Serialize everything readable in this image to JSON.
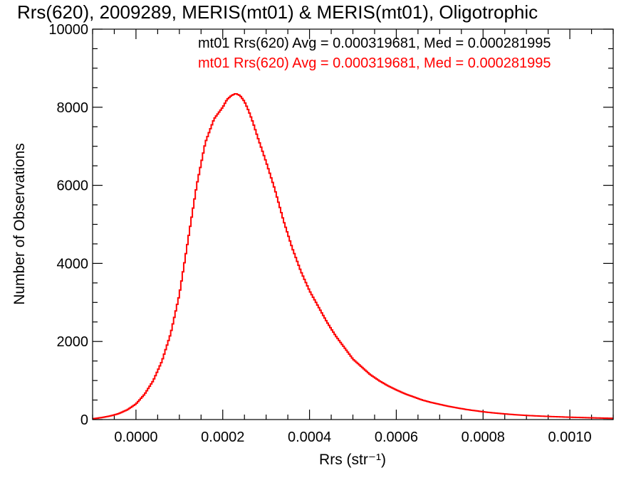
{
  "chart_data": {
    "type": "line",
    "title": "Rrs(620), 2009289, MERIS(mt01) & MERIS(mt01), Oligotrophic",
    "xlabel": "Rrs (str⁻¹)",
    "ylabel": "Number of Observations",
    "xlim": [
      -0.0001,
      0.0011
    ],
    "ylim": [
      0,
      10000
    ],
    "x_ticks": [
      {
        "value": 0.0,
        "label": "0.0000"
      },
      {
        "value": 0.0002,
        "label": "0.0002"
      },
      {
        "value": 0.0004,
        "label": "0.0004"
      },
      {
        "value": 0.0006,
        "label": "0.0006"
      },
      {
        "value": 0.0008,
        "label": "0.0008"
      },
      {
        "value": 0.001,
        "label": "0.0010"
      }
    ],
    "y_ticks": [
      {
        "value": 0,
        "label": "0"
      },
      {
        "value": 2000,
        "label": "2000"
      },
      {
        "value": 4000,
        "label": "4000"
      },
      {
        "value": 6000,
        "label": "6000"
      },
      {
        "value": 8000,
        "label": "8000"
      },
      {
        "value": 10000,
        "label": "10000"
      }
    ],
    "grid": false,
    "legend": [
      {
        "text": "mt01 Rrs(620) Avg = 0.000319681, Med = 0.000281995",
        "color": "#000000"
      },
      {
        "text": "mt01 Rrs(620) Avg = 0.000319681, Med = 0.000281995",
        "color": "#ff0000"
      }
    ],
    "series": [
      {
        "style": "step",
        "color": "#ff0000",
        "x": [
          -0.0001,
          -8e-05,
          -6e-05,
          -4e-05,
          -2e-05,
          0.0,
          2e-05,
          4e-05,
          6e-05,
          8e-05,
          0.0001,
          0.00012,
          0.00014,
          0.00016,
          0.00018,
          0.0002,
          0.00021,
          0.00022,
          0.00023,
          0.00024,
          0.00025,
          0.00026,
          0.00027,
          0.00028,
          0.0003,
          0.00032,
          0.00034,
          0.00036,
          0.00038,
          0.0004,
          0.00042,
          0.00044,
          0.00046,
          0.00048,
          0.0005,
          0.00052,
          0.00054,
          0.00056,
          0.00058,
          0.0006,
          0.00062,
          0.00064,
          0.00066,
          0.00068,
          0.0007,
          0.00072,
          0.00074,
          0.00076,
          0.00078,
          0.0008,
          0.00082,
          0.00084,
          0.00086,
          0.00088,
          0.0009,
          0.00092,
          0.00094,
          0.00096,
          0.00098,
          0.001,
          0.00102,
          0.00104,
          0.00106,
          0.00108,
          0.0011
        ],
        "y": [
          20,
          50,
          90,
          150,
          250,
          400,
          650,
          1000,
          1500,
          2200,
          3200,
          4600,
          6000,
          7100,
          7700,
          8000,
          8200,
          8300,
          8350,
          8300,
          8150,
          7900,
          7600,
          7250,
          6600,
          5900,
          5100,
          4400,
          3800,
          3300,
          2900,
          2500,
          2150,
          1850,
          1550,
          1350,
          1150,
          1000,
          870,
          760,
          660,
          580,
          500,
          440,
          390,
          340,
          300,
          260,
          230,
          200,
          175,
          155,
          135,
          120,
          105,
          95,
          85,
          75,
          68,
          60,
          54,
          48,
          42,
          37,
          32
        ]
      }
    ]
  }
}
